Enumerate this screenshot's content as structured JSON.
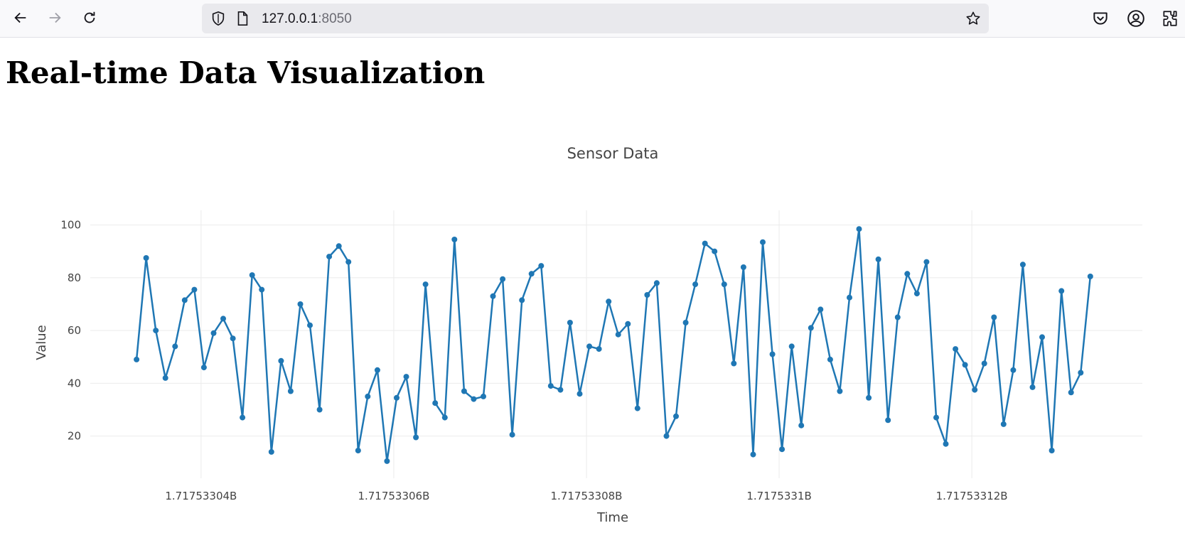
{
  "browser": {
    "url_host": "127.0.0.1",
    "url_port": ":8050",
    "icons": [
      "back-icon",
      "forward-icon",
      "reload-icon",
      "shield-icon",
      "page-icon",
      "bookmark-star-icon",
      "pocket-icon",
      "account-icon",
      "extensions-icon"
    ]
  },
  "page": {
    "title": "Real-time Data Visualization"
  },
  "chart_data": {
    "type": "line",
    "title": "Sensor Data",
    "xlabel": "Time",
    "ylabel": "Value",
    "mode": "lines+markers",
    "color": "#1f77b4",
    "grid": true,
    "x_tick_labels": [
      "1.71753304B",
      "1.71753306B",
      "1.71753308B",
      "1.7175331B",
      "1.71753312B"
    ],
    "x_tick_values": [
      1717533040,
      1717533060,
      1717533080,
      1717533100,
      1717533120
    ],
    "y_tick_values": [
      20,
      40,
      60,
      80,
      100
    ],
    "xlim": [
      1717533028.5,
      1717533137.7
    ],
    "ylim": [
      4.0,
      104.2
    ],
    "x_start": 1717533033.3,
    "x_step": 1,
    "values": [
      49,
      87.5,
      60,
      42,
      54,
      71.5,
      75.5,
      46,
      59,
      64.5,
      57,
      27,
      81,
      75.5,
      14,
      48.5,
      37,
      70,
      62,
      30,
      88,
      92,
      86,
      14.5,
      35,
      45,
      10.5,
      34.5,
      42.5,
      19.5,
      77.5,
      32.5,
      27,
      94.5,
      37,
      34,
      35,
      73,
      79.5,
      20.5,
      71.5,
      81.5,
      84.5,
      39,
      37.5,
      63,
      36,
      54,
      53,
      71,
      58.5,
      62.5,
      30.5,
      73.5,
      78,
      20,
      27.5,
      63,
      77.5,
      93,
      90,
      77.5,
      47.5,
      84,
      13,
      93.5,
      51,
      15,
      54,
      24,
      61,
      68,
      49,
      37,
      72.5,
      98.5,
      34.5,
      87,
      26,
      65,
      81.5,
      74,
      86,
      27,
      17,
      53,
      47,
      37.5,
      47.5,
      65,
      24.5,
      45,
      85,
      38.5,
      57.5,
      14.5,
      75,
      36.5,
      44,
      80.5
    ]
  }
}
